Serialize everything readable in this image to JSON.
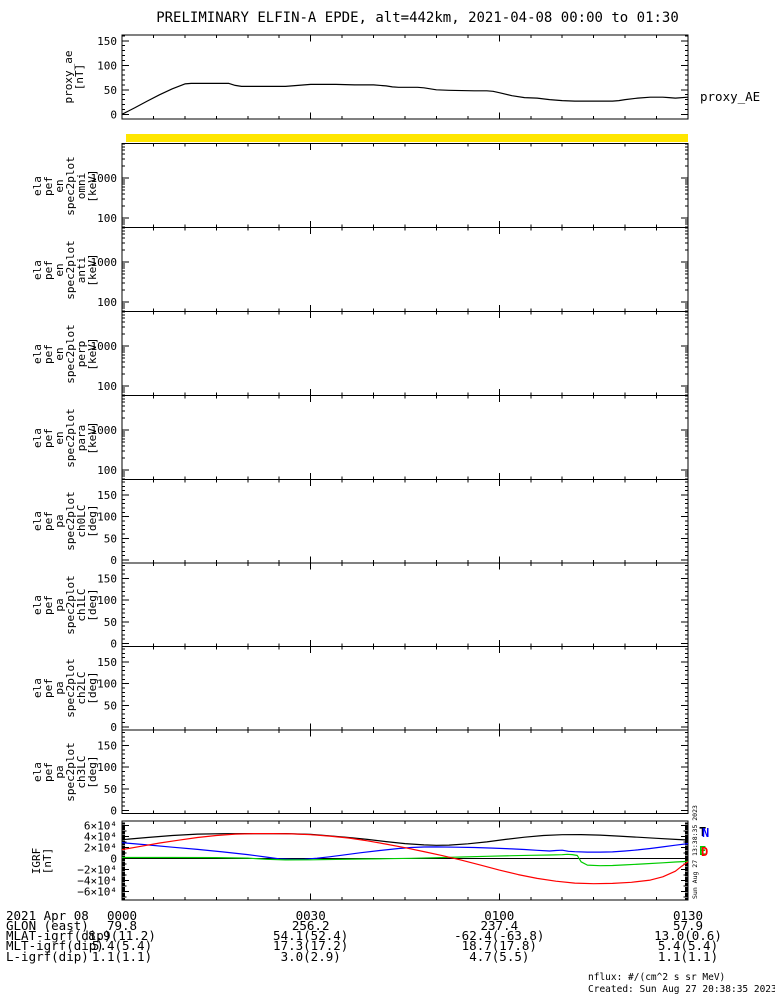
{
  "title": "PRELIMINARY ELFIN-A EPDE, alt=442km, 2021-04-08 00:00 to 01:30",
  "right_labels": {
    "proxy": "proxy_AE"
  },
  "side_timestamp": "Sun Aug 27 13:38:35 2023",
  "footer": {
    "nflux": "nflux: #/(cm^2 s sr MeV)",
    "created": "Created: Sun Aug 27 20:38:35 2023"
  },
  "time_axis": {
    "tick_labels": [
      "0000",
      "0030",
      "0100",
      "0130"
    ],
    "duration_minutes": 90,
    "minor_step_minutes": 5,
    "date": "2021 Apr 08"
  },
  "legend": [
    {
      "text": "T",
      "color": "#000000"
    },
    {
      "text": "N",
      "color": "#0000FF"
    },
    {
      "text": "E",
      "color": "#00CC00"
    },
    {
      "text": "D",
      "color": "#FF0000"
    }
  ],
  "annotations": {
    "rows": [
      {
        "label": "2021 Apr 08",
        "values": [
          "0000",
          "0030",
          "0100",
          "0130"
        ]
      },
      {
        "label": "GLON (east)",
        "values": [
          "79.8",
          "256.2",
          "237.4",
          "57.9"
        ]
      },
      {
        "label": "MLAT-igrf(dip)",
        "values": [
          "8.9(11.2)",
          "54.1(52.4)",
          "-62.4(-63.8)",
          "13.0(0.6)"
        ]
      },
      {
        "label": "MLT-igrf(dip)",
        "values": [
          "5.4(5.4)",
          "17.3(17.2)",
          "18.7(17.8)",
          "5.4(5.4)"
        ]
      },
      {
        "label": "L-igrf(dip)",
        "values": [
          "1.1(1.1)",
          "3.0(2.9)",
          "4.7(5.5)",
          "1.1(1.1)"
        ]
      }
    ]
  },
  "chart_data": [
    {
      "id": "proxy",
      "type": "line",
      "ylabel_lines": [
        "proxy_ae",
        "[nT]"
      ],
      "yaxis": {
        "scale": "linear",
        "unit": "nT",
        "ticks": [
          0,
          50,
          100,
          150
        ],
        "minor_step": 10,
        "ylim": [
          0,
          163
        ]
      },
      "series": [
        {
          "name": "proxy_AE",
          "color": "#000000",
          "points": [
            [
              0,
              0
            ],
            [
              2,
              13
            ],
            [
              4,
              27
            ],
            [
              6,
              40
            ],
            [
              8,
              52
            ],
            [
              10,
              62
            ],
            [
              11,
              63
            ],
            [
              14,
              63
            ],
            [
              17,
              63
            ],
            [
              18,
              59
            ],
            [
              19,
              57
            ],
            [
              22,
              57
            ],
            [
              26,
              57
            ],
            [
              28,
              59
            ],
            [
              30,
              61
            ],
            [
              34,
              61
            ],
            [
              37,
              60
            ],
            [
              40,
              60
            ],
            [
              42,
              58
            ],
            [
              43,
              56
            ],
            [
              44,
              55
            ],
            [
              47,
              55
            ],
            [
              48,
              54
            ],
            [
              50,
              50
            ],
            [
              52,
              49
            ],
            [
              56,
              48
            ],
            [
              58,
              48
            ],
            [
              59,
              47
            ],
            [
              60,
              44
            ],
            [
              62,
              38
            ],
            [
              64,
              34
            ],
            [
              66,
              33
            ],
            [
              68,
              30
            ],
            [
              70,
              28
            ],
            [
              72,
              27
            ],
            [
              78,
              27
            ],
            [
              79,
              28
            ],
            [
              80,
              30
            ],
            [
              82,
              33
            ],
            [
              84,
              35
            ],
            [
              86,
              35
            ],
            [
              87,
              34
            ],
            [
              88,
              33
            ],
            [
              90,
              35
            ]
          ]
        }
      ]
    },
    {
      "id": "bar",
      "type": "color_bar",
      "color": "#FFE600",
      "meaning": "status-bar"
    },
    {
      "id": "omni",
      "type": "spectrogram",
      "empty": true,
      "ylabel_lines": [
        "ela",
        "pef",
        "en",
        "spec2plot",
        "omni",
        "[keV]"
      ],
      "yaxis": {
        "scale": "log",
        "unit": "keV",
        "labeled_ticks": [
          1000,
          100
        ]
      }
    },
    {
      "id": "anti",
      "type": "spectrogram",
      "empty": true,
      "ylabel_lines": [
        "ela",
        "pef",
        "en",
        "spec2plot",
        "anti",
        "[keV]"
      ],
      "yaxis": {
        "scale": "log",
        "unit": "keV",
        "labeled_ticks": [
          1000,
          100
        ]
      }
    },
    {
      "id": "perp",
      "type": "spectrogram",
      "empty": true,
      "ylabel_lines": [
        "ela",
        "pef",
        "en",
        "spec2plot",
        "perp",
        "[keV]"
      ],
      "yaxis": {
        "scale": "log",
        "unit": "keV",
        "labeled_ticks": [
          1000,
          100
        ]
      }
    },
    {
      "id": "para",
      "type": "spectrogram",
      "empty": true,
      "ylabel_lines": [
        "ela",
        "pef",
        "en",
        "spec2plot",
        "para",
        "[keV]"
      ],
      "yaxis": {
        "scale": "log",
        "unit": "keV",
        "labeled_ticks": [
          1000,
          100
        ]
      }
    },
    {
      "id": "ch0",
      "type": "spectrogram",
      "empty": true,
      "ylabel_lines": [
        "ela",
        "pef",
        "pa",
        "spec2plot",
        "ch0LC",
        "[deg]"
      ],
      "yaxis": {
        "scale": "linear",
        "unit": "deg",
        "ticks": [
          0,
          50,
          100,
          150
        ],
        "minor_step": 10
      }
    },
    {
      "id": "ch1",
      "type": "spectrogram",
      "empty": true,
      "ylabel_lines": [
        "ela",
        "pef",
        "pa",
        "spec2plot",
        "ch1LC",
        "[deg]"
      ],
      "yaxis": {
        "scale": "linear",
        "unit": "deg",
        "ticks": [
          0,
          50,
          100,
          150
        ],
        "minor_step": 10
      }
    },
    {
      "id": "ch2",
      "type": "spectrogram",
      "empty": true,
      "ylabel_lines": [
        "ela",
        "pef",
        "pa",
        "spec2plot",
        "ch2LC",
        "[deg]"
      ],
      "yaxis": {
        "scale": "linear",
        "unit": "deg",
        "ticks": [
          0,
          50,
          100,
          150
        ],
        "minor_step": 10
      }
    },
    {
      "id": "ch3",
      "type": "spectrogram",
      "empty": true,
      "ylabel_lines": [
        "ela",
        "pef",
        "pa",
        "spec2plot",
        "ch3LC",
        "[deg]"
      ],
      "yaxis": {
        "scale": "linear",
        "unit": "deg",
        "ticks": [
          0,
          50,
          100,
          150
        ],
        "minor_step": 10
      }
    },
    {
      "id": "igrf",
      "type": "line",
      "zero_line": true,
      "ylabel_lines": [
        "IGRF",
        "[nT]"
      ],
      "yaxis": {
        "scale": "linear",
        "unit": "nT",
        "ticks": [
          60000,
          40000,
          20000,
          0,
          -20000,
          -40000,
          -60000
        ],
        "tick_labels": [
          "6×10⁴",
          "4×10⁴",
          "2×10⁴",
          "0",
          "−2×10⁴",
          "−4×10⁴",
          "−6×10⁴"
        ],
        "minor_step": 2000
      },
      "series": [
        {
          "name": "T",
          "color": "#000000",
          "points": [
            [
              0,
              34000
            ],
            [
              4,
              38000
            ],
            [
              8,
              41500
            ],
            [
              12,
              44000
            ],
            [
              16,
              44800
            ],
            [
              20,
              45000
            ],
            [
              26,
              45000
            ],
            [
              30,
              43500
            ],
            [
              33,
              41000
            ],
            [
              36,
              38000
            ],
            [
              39,
              34500
            ],
            [
              42,
              30500
            ],
            [
              45,
              27000
            ],
            [
              48,
              24500
            ],
            [
              50,
              23800
            ],
            [
              52,
              24200
            ],
            [
              55,
              26500
            ],
            [
              58,
              30000
            ],
            [
              61,
              34500
            ],
            [
              64,
              38500
            ],
            [
              67,
              41500
            ],
            [
              70,
              43000
            ],
            [
              73,
              43200
            ],
            [
              76,
              42200
            ],
            [
              79,
              40500
            ],
            [
              82,
              38500
            ],
            [
              85,
              36500
            ],
            [
              88,
              34500
            ],
            [
              90,
              33500
            ]
          ]
        },
        {
          "name": "N",
          "color": "#0000FF",
          "points": [
            [
              0,
              28500
            ],
            [
              4,
              24500
            ],
            [
              8,
              20500
            ],
            [
              12,
              16500
            ],
            [
              16,
              12000
            ],
            [
              20,
              7000
            ],
            [
              23,
              2500
            ],
            [
              25,
              -500
            ],
            [
              27,
              -1500
            ],
            [
              29,
              -1200
            ],
            [
              31,
              500
            ],
            [
              33,
              3000
            ],
            [
              35,
              6000
            ],
            [
              38,
              10500
            ],
            [
              41,
              14500
            ],
            [
              44,
              18000
            ],
            [
              46,
              19800
            ],
            [
              48,
              20800
            ],
            [
              50,
              21000
            ],
            [
              53,
              20500
            ],
            [
              56,
              19800
            ],
            [
              59,
              18800
            ],
            [
              62,
              17300
            ],
            [
              64,
              16200
            ],
            [
              66,
              14800
            ],
            [
              68,
              13600
            ],
            [
              69,
              14500
            ],
            [
              70,
              15000
            ],
            [
              71,
              13000
            ],
            [
              72,
              12200
            ],
            [
              74,
              11600
            ],
            [
              76,
              11500
            ],
            [
              78,
              12000
            ],
            [
              80,
              13500
            ],
            [
              82,
              15500
            ],
            [
              84,
              18000
            ],
            [
              86,
              21000
            ],
            [
              88,
              24000
            ],
            [
              90,
              27000
            ]
          ]
        },
        {
          "name": "E",
          "color": "#00CC00",
          "points": [
            [
              0,
              1800
            ],
            [
              8,
              1800
            ],
            [
              15,
              1600
            ],
            [
              20,
              800
            ],
            [
              23,
              -1500
            ],
            [
              26,
              -2600
            ],
            [
              30,
              -2400
            ],
            [
              34,
              -1600
            ],
            [
              38,
              -900
            ],
            [
              42,
              -400
            ],
            [
              46,
              300
            ],
            [
              50,
              1500
            ],
            [
              54,
              2800
            ],
            [
              58,
              4000
            ],
            [
              62,
              5000
            ],
            [
              65,
              5700
            ],
            [
              68,
              6300
            ],
            [
              70,
              6800
            ],
            [
              70.8,
              7600
            ],
            [
              71.6,
              7000
            ],
            [
              72.4,
              5500
            ],
            [
              73,
              -6000
            ],
            [
              74,
              -12000
            ],
            [
              76,
              -13000
            ],
            [
              78,
              -12600
            ],
            [
              80,
              -11500
            ],
            [
              83,
              -9800
            ],
            [
              86,
              -7800
            ],
            [
              88,
              -6400
            ],
            [
              90,
              -5200
            ]
          ]
        },
        {
          "name": "D",
          "color": "#FF0000",
          "points": [
            [
              0,
              16000
            ],
            [
              3,
              22000
            ],
            [
              6,
              28000
            ],
            [
              9,
              33000
            ],
            [
              12,
              38000
            ],
            [
              15,
              41500
            ],
            [
              18,
              44000
            ],
            [
              21,
              45000
            ],
            [
              24,
              45000
            ],
            [
              27,
              44500
            ],
            [
              30,
              43000
            ],
            [
              33,
              40500
            ],
            [
              36,
              37000
            ],
            [
              39,
              32000
            ],
            [
              42,
              26000
            ],
            [
              45,
              19500
            ],
            [
              48,
              12500
            ],
            [
              51,
              5000
            ],
            [
              54,
              -3000
            ],
            [
              57,
              -12000
            ],
            [
              60,
              -21000
            ],
            [
              63,
              -29000
            ],
            [
              66,
              -36000
            ],
            [
              69,
              -41000
            ],
            [
              72,
              -44500
            ],
            [
              75,
              -45500
            ],
            [
              78,
              -45000
            ],
            [
              81,
              -43000
            ],
            [
              84,
              -39000
            ],
            [
              86,
              -33000
            ],
            [
              88,
              -23000
            ],
            [
              89,
              -14000
            ],
            [
              90,
              -6000
            ]
          ]
        }
      ]
    }
  ]
}
